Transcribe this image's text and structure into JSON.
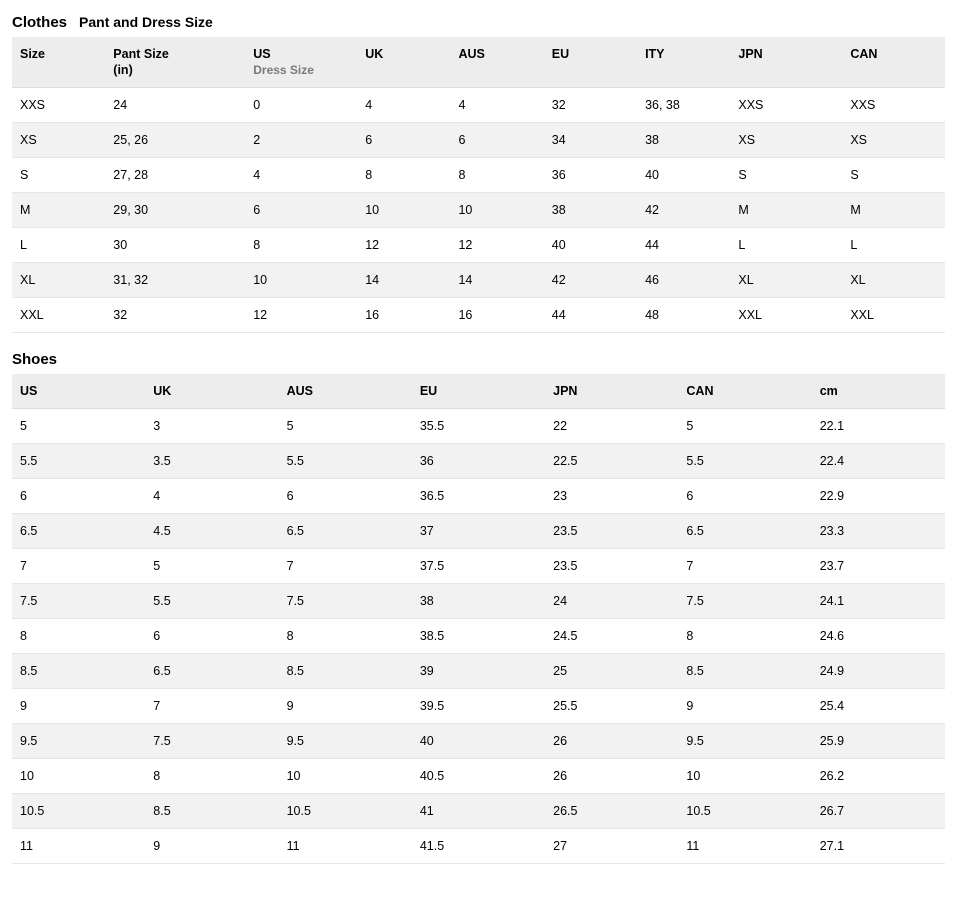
{
  "clothes": {
    "heading_primary": "Clothes",
    "heading_secondary": "Pant and Dress Size",
    "columns": [
      {
        "label": "Size",
        "sub": ""
      },
      {
        "label": "Pant Size",
        "sub": "(in)"
      },
      {
        "label": "US",
        "sub": "Dress Size",
        "sub_style": "muted"
      },
      {
        "label": "UK",
        "sub": ""
      },
      {
        "label": "AUS",
        "sub": ""
      },
      {
        "label": "EU",
        "sub": ""
      },
      {
        "label": "ITY",
        "sub": ""
      },
      {
        "label": "JPN",
        "sub": ""
      },
      {
        "label": "CAN",
        "sub": ""
      }
    ],
    "rows": [
      [
        "XXS",
        "24",
        "0",
        "4",
        "4",
        "32",
        "36, 38",
        "XXS",
        "XXS"
      ],
      [
        "XS",
        "25, 26",
        "2",
        "6",
        "6",
        "34",
        "38",
        "XS",
        "XS"
      ],
      [
        "S",
        "27, 28",
        "4",
        "8",
        "8",
        "36",
        "40",
        "S",
        "S"
      ],
      [
        "M",
        "29, 30",
        "6",
        "10",
        "10",
        "38",
        "42",
        "M",
        "M"
      ],
      [
        "L",
        "30",
        "8",
        "12",
        "12",
        "40",
        "44",
        "L",
        "L"
      ],
      [
        "XL",
        "31, 32",
        "10",
        "14",
        "14",
        "42",
        "46",
        "XL",
        "XL"
      ],
      [
        "XXL",
        "32",
        "12",
        "16",
        "16",
        "44",
        "48",
        "XXL",
        "XXL"
      ]
    ]
  },
  "shoes": {
    "heading": "Shoes",
    "columns": [
      "US",
      "UK",
      "AUS",
      "EU",
      "JPN",
      "CAN",
      "cm"
    ],
    "rows": [
      [
        "5",
        "3",
        "5",
        "35.5",
        "22",
        "5",
        "22.1"
      ],
      [
        "5.5",
        "3.5",
        "5.5",
        "36",
        "22.5",
        "5.5",
        "22.4"
      ],
      [
        "6",
        "4",
        "6",
        "36.5",
        "23",
        "6",
        "22.9"
      ],
      [
        "6.5",
        "4.5",
        "6.5",
        "37",
        "23.5",
        "6.5",
        "23.3"
      ],
      [
        "7",
        "5",
        "7",
        "37.5",
        "23.5",
        "7",
        "23.7"
      ],
      [
        "7.5",
        "5.5",
        "7.5",
        "38",
        "24",
        "7.5",
        "24.1"
      ],
      [
        "8",
        "6",
        "8",
        "38.5",
        "24.5",
        "8",
        "24.6"
      ],
      [
        "8.5",
        "6.5",
        "8.5",
        "39",
        "25",
        "8.5",
        "24.9"
      ],
      [
        "9",
        "7",
        "9",
        "39.5",
        "25.5",
        "9",
        "25.4"
      ],
      [
        "9.5",
        "7.5",
        "9.5",
        "40",
        "26",
        "9.5",
        "25.9"
      ],
      [
        "10",
        "8",
        "10",
        "40.5",
        "26",
        "10",
        "26.2"
      ],
      [
        "10.5",
        "8.5",
        "10.5",
        "41",
        "26.5",
        "10.5",
        "26.7"
      ],
      [
        "11",
        "9",
        "11",
        "41.5",
        "27",
        "11",
        "27.1"
      ]
    ]
  },
  "style": {
    "background_color": "#ffffff",
    "header_row_bg": "#ededed",
    "stripe_row_bg": "#f2f2f2",
    "border_color": "#e6e6e6",
    "text_color": "#000000",
    "muted_color": "#7a7a7a",
    "font_family": "Arial, Helvetica, sans-serif",
    "heading_fontsize_pt": 15,
    "body_fontsize_pt": 12.5
  }
}
